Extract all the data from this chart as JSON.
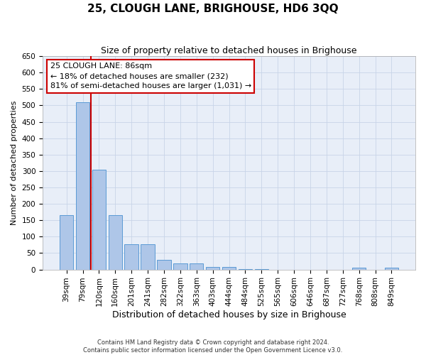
{
  "title": "25, CLOUGH LANE, BRIGHOUSE, HD6 3QQ",
  "subtitle": "Size of property relative to detached houses in Brighouse",
  "xlabel": "Distribution of detached houses by size in Brighouse",
  "ylabel": "Number of detached properties",
  "bar_labels": [
    "39sqm",
    "79sqm",
    "120sqm",
    "160sqm",
    "201sqm",
    "241sqm",
    "282sqm",
    "322sqm",
    "363sqm",
    "403sqm",
    "444sqm",
    "484sqm",
    "525sqm",
    "565sqm",
    "606sqm",
    "646sqm",
    "687sqm",
    "727sqm",
    "768sqm",
    "808sqm",
    "849sqm"
  ],
  "bar_values": [
    165,
    510,
    305,
    165,
    76,
    76,
    30,
    19,
    19,
    7,
    7,
    2,
    2,
    0,
    0,
    0,
    0,
    0,
    5,
    0,
    5
  ],
  "bar_color": "#aec6e8",
  "bar_edge_color": "#5b9bd5",
  "grid_color": "#c8d4e8",
  "background_color": "#e8eef8",
  "vline_color": "#cc0000",
  "ylim": [
    0,
    650
  ],
  "yticks": [
    0,
    50,
    100,
    150,
    200,
    250,
    300,
    350,
    400,
    450,
    500,
    550,
    600,
    650
  ],
  "annotation_line1": "25 CLOUGH LANE: 86sqm",
  "annotation_line2": "← 18% of detached houses are smaller (232)",
  "annotation_line3": "81% of semi-detached houses are larger (1,031) →",
  "footnote1": "Contains HM Land Registry data © Crown copyright and database right 2024.",
  "footnote2": "Contains public sector information licensed under the Open Government Licence v3.0.",
  "title_fontsize": 11,
  "subtitle_fontsize": 9,
  "tick_fontsize": 7.5,
  "ylabel_fontsize": 8,
  "xlabel_fontsize": 9,
  "annot_fontsize": 8,
  "footnote_fontsize": 6
}
